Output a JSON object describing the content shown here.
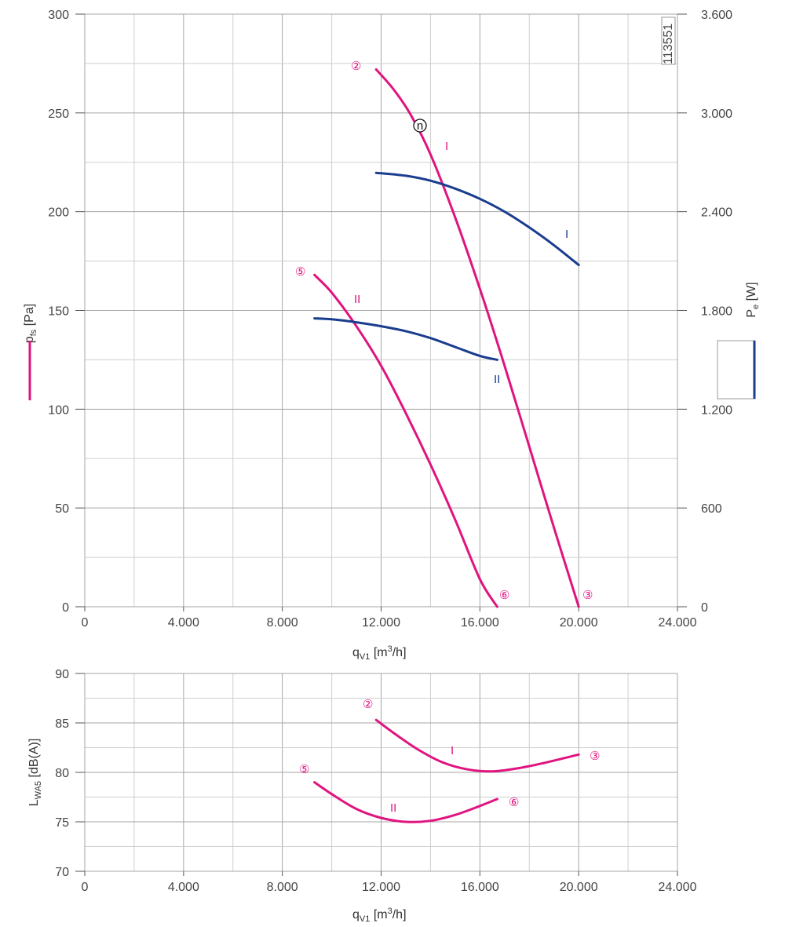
{
  "figure_id": "113551",
  "colors": {
    "pressure": "#e0147f",
    "power": "#1a3d8f",
    "grid_major": "#a6a6a6",
    "grid_minor": "#cfcfcf",
    "axis": "#555555"
  },
  "chart_data": [
    {
      "type": "line",
      "name": "pressure-power",
      "xlabel": "q",
      "xlabel_sub": "V1",
      "xlabel_unit": " [m",
      "xlabel_sup": "3",
      "xlabel_unit_end": "/h]",
      "xlim": [
        0,
        24000
      ],
      "x_ticks": [
        0,
        4000,
        8000,
        12000,
        16000,
        20000,
        24000
      ],
      "x_tick_labels": [
        "0",
        "4.000",
        "8.000",
        "12.000",
        "16.000",
        "20.000",
        "24.000"
      ],
      "ylabel": "p",
      "ylabel_sub": "fs",
      "ylabel_unit": " [Pa]",
      "ylim": [
        0,
        300
      ],
      "y_ticks": [
        0,
        50,
        100,
        150,
        200,
        250,
        300
      ],
      "y_tick_labels": [
        "0",
        "50",
        "100",
        "150",
        "200",
        "250",
        "300"
      ],
      "y2label": "P",
      "y2label_sub": "e",
      "y2label_unit": " [W]",
      "y2lim": [
        0,
        3600
      ],
      "y2_ticks": [
        0,
        600,
        1200,
        1800,
        2400,
        3000,
        3600
      ],
      "y2_tick_labels": [
        "0",
        "600",
        "1.200",
        "1.800",
        "2.400",
        "3.000",
        "3.600"
      ],
      "series": [
        {
          "name": "I",
          "axis": "left",
          "color": "#e0147f",
          "x": [
            11800,
            12500,
            13200,
            14000,
            15000,
            16000,
            17000,
            18000,
            19000,
            20000
          ],
          "y": [
            272,
            262,
            249,
            229,
            197,
            161,
            122,
            81,
            40,
            0
          ]
        },
        {
          "name": "II",
          "axis": "left",
          "color": "#e0147f",
          "x": [
            9300,
            10000,
            11000,
            12000,
            13000,
            14000,
            15000,
            16000,
            16700
          ],
          "y": [
            168,
            159,
            142,
            122,
            98,
            72,
            44,
            14,
            0
          ]
        },
        {
          "name": "I",
          "axis": "right",
          "color": "#1a3d8f",
          "x": [
            11800,
            13000,
            14000,
            15000,
            16000,
            17000,
            18000,
            19000,
            20000
          ],
          "y": [
            2636,
            2618,
            2588,
            2540,
            2478,
            2400,
            2304,
            2196,
            2076
          ]
        },
        {
          "name": "II",
          "axis": "right",
          "color": "#1a3d8f",
          "x": [
            9300,
            10000,
            11000,
            12000,
            13000,
            14000,
            15000,
            16000,
            16700
          ],
          "y": [
            1752,
            1746,
            1728,
            1704,
            1674,
            1632,
            1578,
            1524,
            1500
          ]
        }
      ],
      "annotations": [
        "②",
        "⑤",
        "③",
        "⑥",
        "I",
        "II",
        "n"
      ]
    },
    {
      "type": "line",
      "name": "sound-power",
      "xlabel": "q",
      "xlabel_sub": "V1",
      "xlabel_unit": " [m",
      "xlabel_sup": "3",
      "xlabel_unit_end": "/h]",
      "xlim": [
        0,
        24000
      ],
      "x_ticks": [
        0,
        4000,
        8000,
        12000,
        16000,
        20000,
        24000
      ],
      "x_tick_labels": [
        "0",
        "4.000",
        "8.000",
        "12.000",
        "16.000",
        "20.000",
        "24.000"
      ],
      "ylabel": "L",
      "ylabel_sub": "WA5",
      "ylabel_unit": " [dB(A)]",
      "ylim": [
        70,
        90
      ],
      "y_ticks": [
        70,
        75,
        80,
        85,
        90
      ],
      "y_tick_labels": [
        "70",
        "75",
        "80",
        "85",
        "90"
      ],
      "series": [
        {
          "name": "I",
          "color": "#e0147f",
          "x": [
            11800,
            12500,
            13500,
            14500,
            15500,
            16500,
            17500,
            18500,
            20000
          ],
          "y": [
            85.3,
            84.0,
            82.3,
            81.0,
            80.3,
            80.1,
            80.4,
            80.9,
            81.8
          ]
        },
        {
          "name": "II",
          "color": "#e0147f",
          "x": [
            9300,
            10000,
            11000,
            12000,
            13000,
            14000,
            15000,
            16000,
            16700
          ],
          "y": [
            79.0,
            77.8,
            76.3,
            75.4,
            75.0,
            75.1,
            75.7,
            76.6,
            77.3
          ]
        }
      ],
      "annotations": [
        "②",
        "⑤",
        "③",
        "⑥",
        "I",
        "II"
      ]
    }
  ]
}
